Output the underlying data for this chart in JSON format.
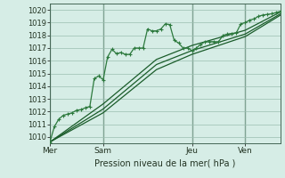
{
  "xlabel": "Pression niveau de la mer( hPa )",
  "bg_color": "#d6ede6",
  "grid_color": "#9bbfb0",
  "line_color": "#1a5c2a",
  "line_color2": "#2d7a3e",
  "ylim": [
    1009.5,
    1020.5
  ],
  "yticks": [
    1010,
    1011,
    1012,
    1013,
    1014,
    1015,
    1016,
    1017,
    1018,
    1019,
    1020
  ],
  "day_labels": [
    "Mer",
    "Sam",
    "Jeu",
    "Ven"
  ],
  "day_positions": [
    0,
    72,
    192,
    264
  ],
  "total_hours": 312,
  "series1": [
    [
      0,
      1009.6
    ],
    [
      6,
      1010.8
    ],
    [
      12,
      1011.4
    ],
    [
      18,
      1011.7
    ],
    [
      24,
      1011.8
    ],
    [
      30,
      1011.9
    ],
    [
      36,
      1012.1
    ],
    [
      42,
      1012.15
    ],
    [
      48,
      1012.3
    ],
    [
      54,
      1012.4
    ],
    [
      60,
      1014.6
    ],
    [
      66,
      1014.8
    ],
    [
      72,
      1014.5
    ],
    [
      78,
      1016.3
    ],
    [
      84,
      1016.9
    ],
    [
      90,
      1016.55
    ],
    [
      96,
      1016.65
    ],
    [
      102,
      1016.5
    ],
    [
      108,
      1016.5
    ],
    [
      114,
      1017.0
    ],
    [
      120,
      1017.0
    ],
    [
      126,
      1017.0
    ],
    [
      132,
      1018.5
    ],
    [
      138,
      1018.35
    ],
    [
      144,
      1018.35
    ],
    [
      150,
      1018.5
    ],
    [
      156,
      1018.9
    ],
    [
      162,
      1018.85
    ],
    [
      168,
      1017.6
    ],
    [
      174,
      1017.4
    ],
    [
      180,
      1017.0
    ],
    [
      186,
      1017.0
    ],
    [
      192,
      1016.8
    ],
    [
      198,
      1017.0
    ],
    [
      204,
      1017.3
    ],
    [
      210,
      1017.5
    ],
    [
      216,
      1017.5
    ],
    [
      222,
      1017.5
    ],
    [
      228,
      1017.5
    ],
    [
      234,
      1018.0
    ],
    [
      240,
      1018.1
    ],
    [
      246,
      1018.15
    ],
    [
      252,
      1018.2
    ],
    [
      258,
      1018.9
    ],
    [
      264,
      1019.0
    ],
    [
      270,
      1019.2
    ],
    [
      276,
      1019.3
    ],
    [
      282,
      1019.5
    ],
    [
      288,
      1019.6
    ],
    [
      294,
      1019.65
    ],
    [
      300,
      1019.7
    ],
    [
      306,
      1019.8
    ],
    [
      312,
      1019.9
    ]
  ],
  "series2": [
    [
      0,
      1009.6
    ],
    [
      72,
      1011.9
    ],
    [
      144,
      1015.3
    ],
    [
      192,
      1016.5
    ],
    [
      264,
      1017.9
    ],
    [
      312,
      1019.6
    ]
  ],
  "series3": [
    [
      0,
      1009.6
    ],
    [
      72,
      1012.2
    ],
    [
      144,
      1015.7
    ],
    [
      192,
      1016.8
    ],
    [
      264,
      1018.1
    ],
    [
      312,
      1019.7
    ]
  ],
  "series4": [
    [
      0,
      1009.6
    ],
    [
      72,
      1012.6
    ],
    [
      144,
      1016.1
    ],
    [
      192,
      1017.2
    ],
    [
      264,
      1018.4
    ],
    [
      312,
      1019.85
    ]
  ]
}
